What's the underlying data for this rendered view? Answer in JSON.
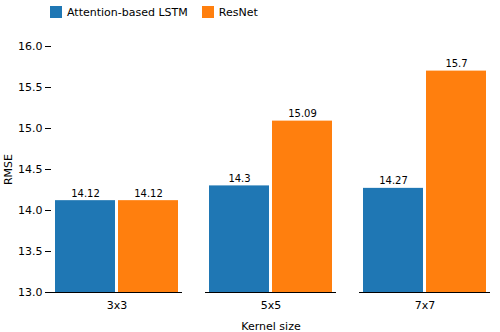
{
  "chart_data": {
    "type": "bar",
    "categories": [
      "3x3",
      "5x5",
      "7x7"
    ],
    "series": [
      {
        "name": "Attention-based LSTM",
        "color": "#1f77b4",
        "values": [
          14.12,
          14.3,
          14.27
        ]
      },
      {
        "name": "ResNet",
        "color": "#ff7f0e",
        "values": [
          14.12,
          15.09,
          15.7
        ]
      }
    ],
    "xlabel": "Kernel size",
    "ylabel": "RMSE",
    "ylim": [
      13.0,
      16.0
    ],
    "yticks": [
      {
        "value": 13,
        "label": "13.0"
      },
      13.5,
      {
        "value": 14,
        "label": "14.0"
      },
      14.5,
      {
        "value": 15,
        "label": "15.0"
      },
      15.5,
      {
        "value": 16,
        "label": "16.0"
      }
    ],
    "data_labels": true,
    "legend": "upper left",
    "grid": false
  }
}
